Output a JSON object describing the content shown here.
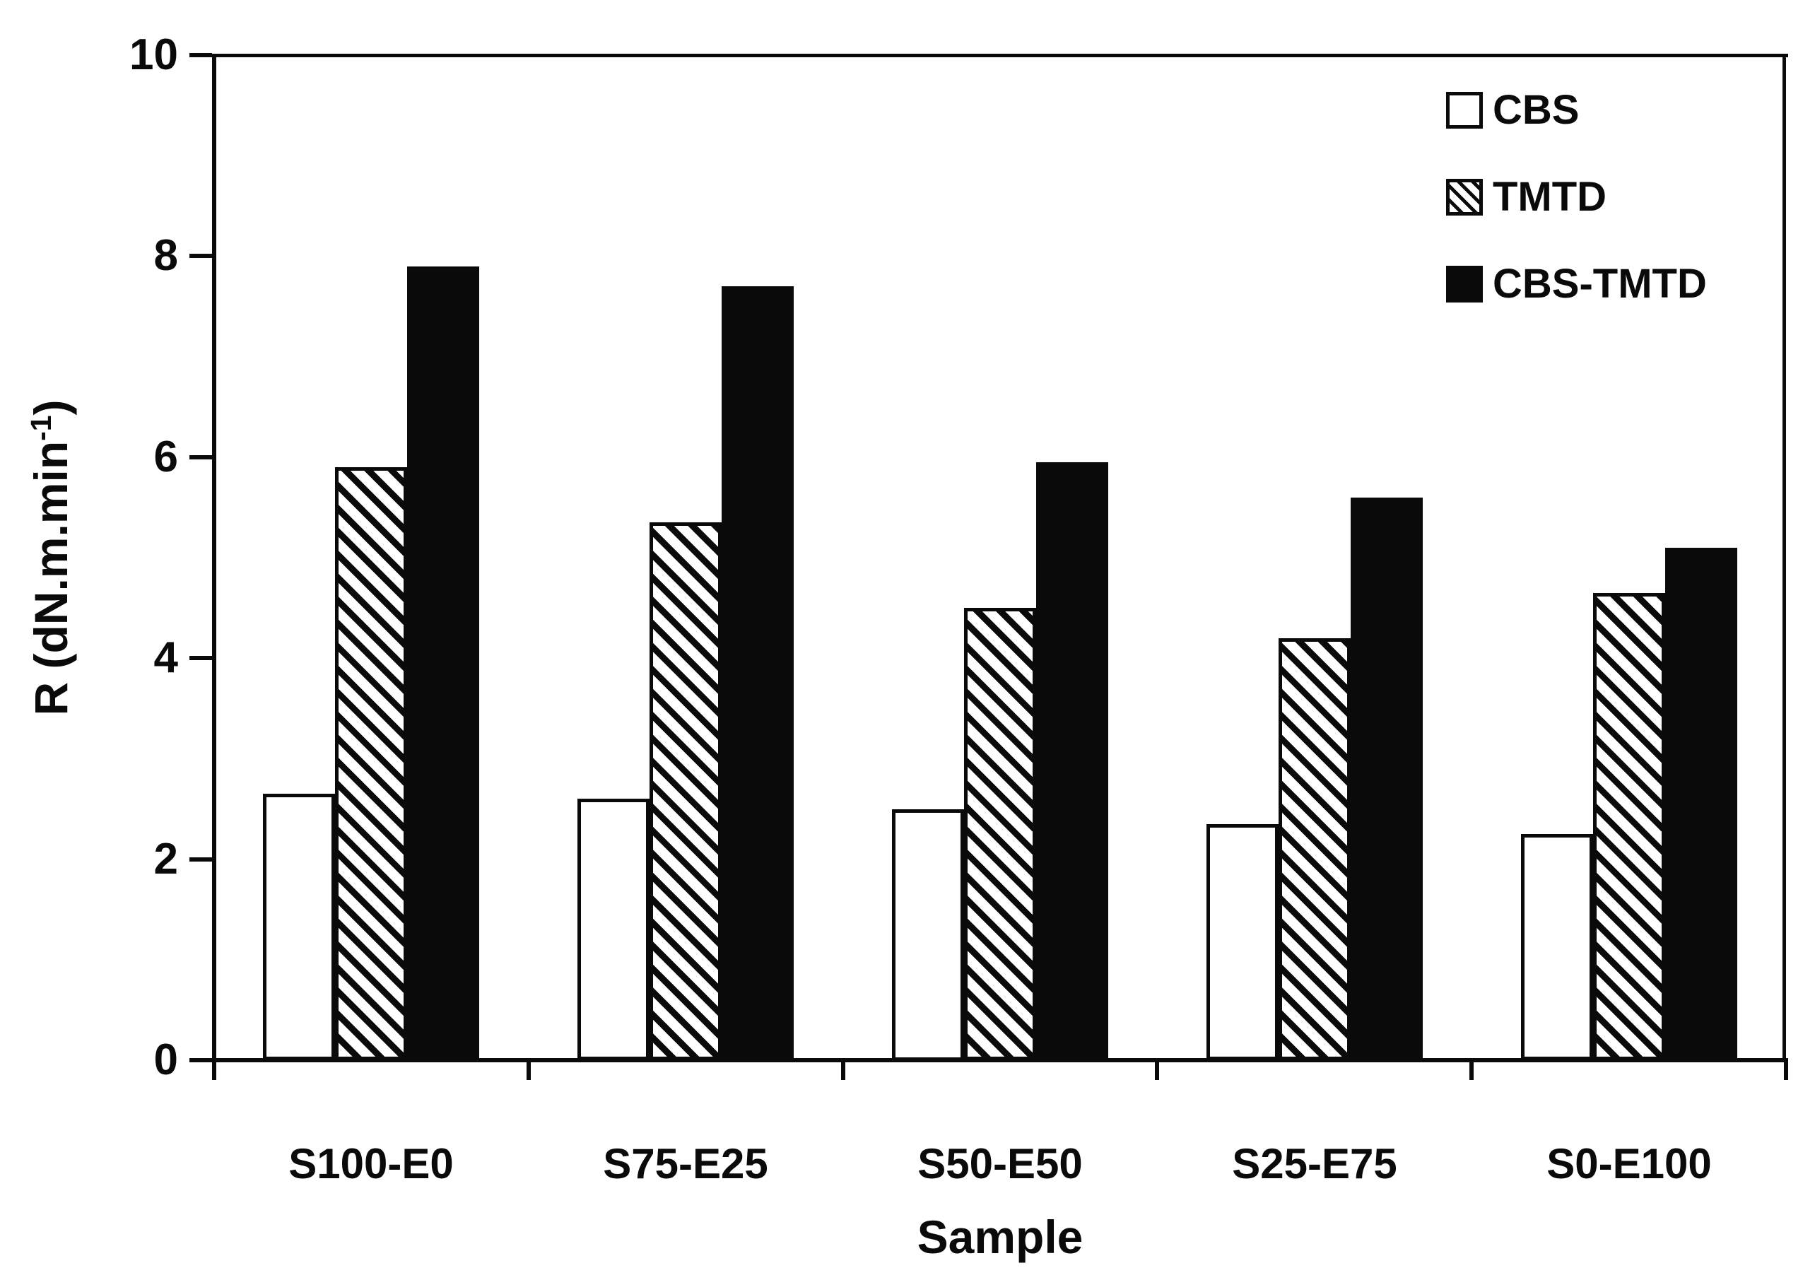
{
  "figure": {
    "background": "#ffffff"
  },
  "chart_data": {
    "type": "bar",
    "title": "",
    "xlabel": "Sample",
    "ylabel": "R (dN.m.min⁻¹)",
    "ylabel_parts": {
      "prefix": "R (dN.m.min",
      "superscript": "-1",
      "suffix": ")"
    },
    "categories": [
      "S100-E0",
      "S75-E25",
      "S50-E50",
      "S25-E75",
      "S0-E100"
    ],
    "series": [
      {
        "name": "CBS",
        "fill": "white",
        "values": [
          2.65,
          2.6,
          2.5,
          2.35,
          2.25
        ]
      },
      {
        "name": "TMTD",
        "fill": "diagonal-hatch",
        "values": [
          5.9,
          5.35,
          4.5,
          4.2,
          4.65
        ]
      },
      {
        "name": "CBS-TMTD",
        "fill": "black",
        "values": [
          7.9,
          7.7,
          5.95,
          5.6,
          5.1
        ]
      }
    ],
    "ylim": [
      0,
      10
    ],
    "yticks": [
      "0",
      "2",
      "4",
      "6",
      "8",
      "10"
    ],
    "grid": false,
    "legend_position": "top-right-inside",
    "colors": {
      "foreground": "#0a0a0a",
      "background": "#ffffff"
    }
  }
}
